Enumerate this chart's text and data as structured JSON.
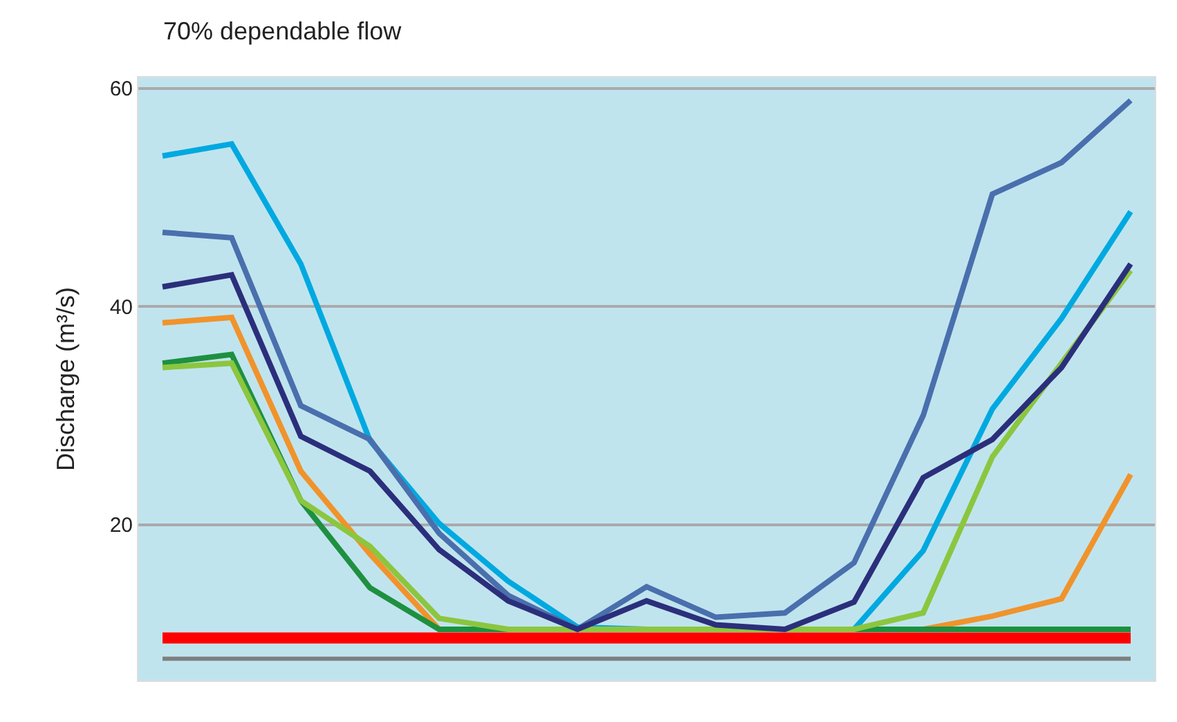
{
  "chart_data": {
    "type": "line",
    "title": "70% dependable flow",
    "ylabel": "Discharge (m³/s)",
    "categories": [
      null,
      null,
      null,
      null,
      null,
      null,
      null,
      null,
      null,
      null,
      null,
      null,
      null,
      null,
      null
    ],
    "ylim": [
      5.7,
      61
    ],
    "yticks": [
      20,
      40,
      60
    ],
    "grid": "y",
    "marker": "none",
    "line_style": "solid",
    "series": [
      {
        "color": "#00a9e0",
        "values": [
          53.8,
          54.9,
          43.9,
          27.7,
          20.1,
          14.8,
          10.6,
          10.4,
          10.4,
          10.4,
          10.4,
          17.6,
          30.6,
          38.9,
          48.7
        ]
      },
      {
        "color": "#4a6fad",
        "values": [
          46.8,
          46.3,
          30.9,
          27.8,
          19.2,
          13.5,
          10.4,
          14.3,
          11.5,
          11.9,
          16.5,
          30.0,
          50.3,
          53.2,
          58.9
        ]
      },
      {
        "color": "#f0932b",
        "values": [
          38.5,
          39.0,
          24.9,
          17.3,
          10.4,
          10.4,
          10.4,
          10.4,
          10.4,
          10.4,
          10.4,
          10.4,
          11.6,
          13.2,
          24.6
        ]
      },
      {
        "color": "#1e9040",
        "values": [
          34.8,
          35.6,
          22.2,
          14.2,
          10.4,
          10.4,
          10.4,
          10.4,
          10.4,
          10.4,
          10.4,
          10.4,
          10.4,
          10.4,
          10.4
        ]
      },
      {
        "color": "#8cc63f",
        "values": [
          34.4,
          34.8,
          22.2,
          18.0,
          11.4,
          10.4,
          10.4,
          10.4,
          10.4,
          10.4,
          10.4,
          11.9,
          26.2,
          34.8,
          43.3
        ]
      },
      {
        "color": "#2b2f7b",
        "values": [
          41.8,
          42.9,
          28.1,
          24.9,
          17.7,
          13.0,
          10.4,
          13.0,
          10.8,
          10.4,
          12.9,
          24.3,
          27.8,
          34.4,
          43.9
        ]
      },
      {
        "color": "#7f7f7f",
        "values": [
          7.7,
          7.7,
          7.7,
          7.7,
          7.7,
          7.7,
          7.7,
          7.7,
          7.7,
          7.7,
          7.7,
          7.7,
          7.7,
          7.7,
          7.7
        ]
      },
      {
        "color": "#ff0000",
        "values": [
          9.6,
          9.6,
          9.6,
          9.6,
          9.6,
          9.6,
          9.6,
          9.6,
          9.6,
          9.6,
          9.6,
          9.6,
          9.6,
          9.6,
          9.6
        ]
      }
    ]
  }
}
